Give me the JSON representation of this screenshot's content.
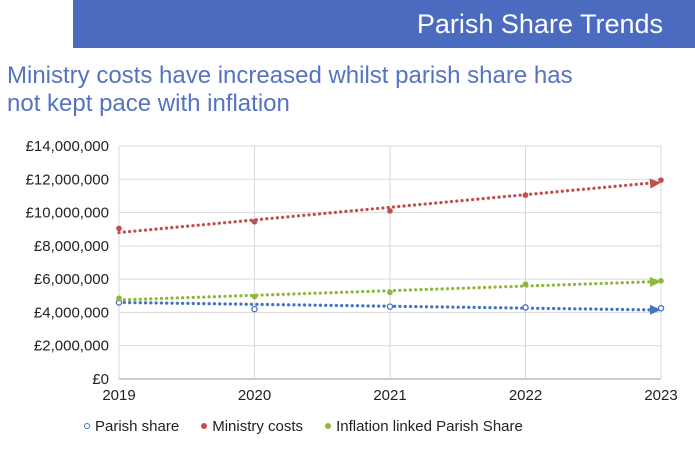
{
  "header": {
    "title": "Parish Share Trends"
  },
  "subtitle": {
    "line1": "Ministry costs have increased whilst parish share has",
    "line2": "not kept pace with inflation"
  },
  "chart_data": {
    "type": "scatter",
    "x": [
      "2019",
      "2020",
      "2021",
      "2022",
      "2023"
    ],
    "ylim": [
      0,
      14000000
    ],
    "y_ticks": [
      0,
      2000000,
      4000000,
      6000000,
      8000000,
      10000000,
      12000000,
      14000000
    ],
    "y_tick_labels": [
      "£0",
      "£2,000,000",
      "£4,000,000",
      "£6,000,000",
      "£8,000,000",
      "£10,000,000",
      "£12,000,000",
      "£14,000,000"
    ],
    "grid": true,
    "legend_position": "bottom",
    "trendlines": true,
    "series": [
      {
        "name": "Parish share",
        "color": "#4472c4",
        "marker": "open-circle",
        "values": [
          4600000,
          4200000,
          4350000,
          4300000,
          4250000
        ],
        "trend": [
          4600000,
          4150000
        ]
      },
      {
        "name": "Ministry costs",
        "color": "#c0504d",
        "marker": "filled-circle",
        "values": [
          9050000,
          9450000,
          10100000,
          11050000,
          11950000
        ],
        "trend": [
          8800000,
          11800000
        ]
      },
      {
        "name": "Inflation linked Parish Share",
        "color": "#8db83b",
        "marker": "filled-circle",
        "values": [
          4850000,
          4950000,
          5200000,
          5700000,
          5900000
        ],
        "trend": [
          4750000,
          5850000
        ]
      }
    ]
  }
}
